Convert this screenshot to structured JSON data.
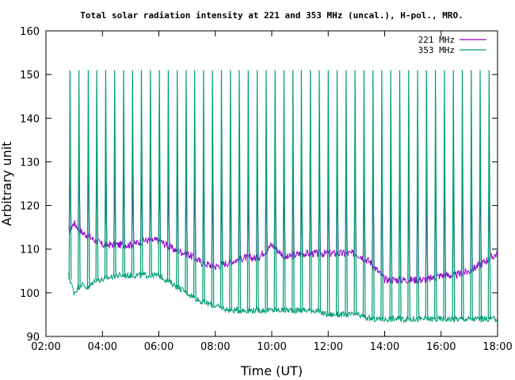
{
  "chart_data": {
    "type": "line",
    "title": "Total solar radiation intensity at 221 and 353 MHz (uncal.), H-pol., MRO.",
    "xlabel": "Time (UT)",
    "ylabel": "Arbitrary unit",
    "xlim": [
      "02:00",
      "18:00"
    ],
    "ylim": [
      90,
      160
    ],
    "x_ticks": [
      "02:00",
      "04:00",
      "06:00",
      "08:00",
      "10:00",
      "12:00",
      "14:00",
      "16:00",
      "18:00"
    ],
    "y_ticks": [
      "90",
      "100",
      "110",
      "120",
      "130",
      "140",
      "150",
      "160"
    ],
    "legend_position": "top-right",
    "grid": false,
    "series": [
      {
        "name": "221 MHz",
        "color": "#9400d3",
        "x": [
          "02:48",
          "03:00",
          "03:15",
          "03:30",
          "03:45",
          "04:00",
          "04:30",
          "05:00",
          "05:30",
          "06:00",
          "06:30",
          "07:00",
          "07:30",
          "08:00",
          "08:30",
          "09:00",
          "09:30",
          "10:00",
          "10:30",
          "11:00",
          "11:30",
          "12:00",
          "12:30",
          "13:00",
          "13:30",
          "14:00",
          "14:30",
          "15:00",
          "15:30",
          "16:00",
          "16:30",
          "17:00",
          "17:30",
          "18:00"
        ],
        "y": [
          114,
          116,
          114,
          113,
          112,
          111,
          111,
          111,
          112,
          112,
          110,
          109,
          107,
          106,
          107,
          108,
          108,
          111,
          108,
          109,
          109,
          109,
          109,
          109,
          107,
          103,
          103,
          103,
          103,
          104,
          104,
          105,
          107,
          109
        ],
        "spikes_top": [
          131,
          129,
          134,
          130,
          128,
          127,
          129,
          128,
          127,
          126,
          127,
          128,
          127,
          126,
          127,
          128,
          127,
          127,
          127,
          128,
          127,
          128,
          128,
          128,
          127,
          127,
          126,
          126,
          125,
          127,
          127,
          127,
          127,
          128
        ]
      },
      {
        "name": "353 MHz",
        "color": "#009e73",
        "x": [
          "02:48",
          "03:00",
          "03:15",
          "03:30",
          "03:45",
          "04:00",
          "04:30",
          "05:00",
          "05:30",
          "06:00",
          "06:30",
          "07:00",
          "07:30",
          "08:00",
          "08:30",
          "09:00",
          "09:30",
          "10:00",
          "10:30",
          "11:00",
          "11:30",
          "12:00",
          "12:30",
          "13:00",
          "13:30",
          "14:00",
          "14:30",
          "15:00",
          "15:30",
          "16:00",
          "16:30",
          "17:00",
          "17:30",
          "18:00"
        ],
        "y": [
          104,
          100,
          102,
          101,
          103,
          103,
          104,
          104,
          104,
          104,
          102,
          100,
          98,
          97,
          96,
          96,
          96,
          96,
          96,
          96,
          96,
          95,
          95,
          95,
          94,
          94,
          94,
          94,
          94,
          94,
          94,
          94,
          94,
          94
        ],
        "spikes_top": 151
      }
    ],
    "spike_times": [
      "02:51",
      "03:10",
      "03:30",
      "03:48",
      "04:07",
      "04:26",
      "04:45",
      "05:04",
      "05:23",
      "05:42",
      "06:01",
      "06:20",
      "06:39",
      "06:58",
      "07:16",
      "07:35",
      "07:54",
      "08:13",
      "08:32",
      "08:51",
      "09:10",
      "09:29",
      "09:48",
      "10:07",
      "10:26",
      "10:45",
      "11:03",
      "11:22",
      "11:41",
      "12:00",
      "12:19",
      "12:38",
      "12:57",
      "13:16",
      "13:35",
      "13:54",
      "14:13",
      "14:32",
      "14:51",
      "15:10",
      "15:29",
      "15:48",
      "16:07",
      "16:26",
      "16:45",
      "17:04",
      "17:23",
      "17:42"
    ]
  }
}
